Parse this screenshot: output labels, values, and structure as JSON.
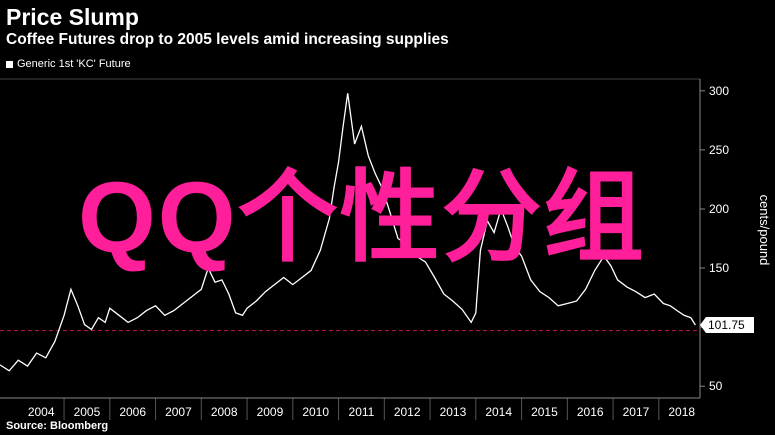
{
  "header": {
    "title": "Price Slump",
    "subtitle": "Coffee Futures drop to 2005 levels amid increasing supplies",
    "source": "Source: Bloomberg"
  },
  "watermark_text": "QQ个性分组",
  "colors": {
    "background": "#000000",
    "line": "#ffffff",
    "reference_line": "#c01848",
    "watermark": "#ff1f9a"
  },
  "chart_data": {
    "type": "line",
    "title": "Price Slump",
    "subtitle": "Coffee Futures drop to 2005 levels amid increasing supplies",
    "ylabel": "cents/pound",
    "ylim": [
      40,
      310
    ],
    "yticks": [
      50,
      100,
      150,
      200,
      250,
      300
    ],
    "ytick_labels": [
      "50",
      "100",
      "150",
      "200",
      "250",
      "300"
    ],
    "xlim": [
      2003.6,
      2018.9
    ],
    "xtick_labels": [
      "2004",
      "2005",
      "2006",
      "2007",
      "2008",
      "2009",
      "2010",
      "2011",
      "2012",
      "2013",
      "2014",
      "2015",
      "2016",
      "2017",
      "2018"
    ],
    "grid": false,
    "legend_position": "top-left",
    "last_value_label": "101.75",
    "reference_line_value": 97,
    "series": [
      {
        "name": "Generic 1st 'KC' Future",
        "x": [
          2003.6,
          2003.8,
          2004.0,
          2004.2,
          2004.4,
          2004.6,
          2004.8,
          2005.0,
          2005.15,
          2005.3,
          2005.45,
          2005.6,
          2005.75,
          2005.9,
          2006.0,
          2006.2,
          2006.4,
          2006.6,
          2006.8,
          2007.0,
          2007.2,
          2007.4,
          2007.6,
          2007.8,
          2008.0,
          2008.15,
          2008.3,
          2008.45,
          2008.6,
          2008.75,
          2008.9,
          2009.0,
          2009.2,
          2009.4,
          2009.6,
          2009.8,
          2010.0,
          2010.2,
          2010.4,
          2010.6,
          2010.8,
          2010.9,
          2011.0,
          2011.1,
          2011.2,
          2011.35,
          2011.5,
          2011.65,
          2011.8,
          2011.95,
          2012.1,
          2012.3,
          2012.5,
          2012.7,
          2012.9,
          2013.1,
          2013.3,
          2013.5,
          2013.7,
          2013.9,
          2014.0,
          2014.1,
          2014.25,
          2014.4,
          2014.55,
          2014.7,
          2014.85,
          2015.0,
          2015.2,
          2015.4,
          2015.6,
          2015.8,
          2016.0,
          2016.2,
          2016.4,
          2016.6,
          2016.8,
          2016.95,
          2017.1,
          2017.3,
          2017.5,
          2017.7,
          2017.9,
          2018.1,
          2018.25,
          2018.4,
          2018.55,
          2018.7,
          2018.8
        ],
        "y": [
          68,
          63,
          72,
          67,
          78,
          74,
          88,
          110,
          132,
          118,
          102,
          98,
          108,
          104,
          116,
          110,
          104,
          108,
          114,
          118,
          110,
          114,
          120,
          126,
          132,
          150,
          138,
          140,
          128,
          112,
          110,
          116,
          122,
          130,
          136,
          142,
          136,
          142,
          148,
          165,
          192,
          218,
          240,
          270,
          298,
          255,
          270,
          245,
          230,
          218,
          200,
          175,
          170,
          160,
          155,
          142,
          128,
          122,
          115,
          104,
          112,
          165,
          190,
          180,
          200,
          185,
          168,
          160,
          140,
          130,
          125,
          118,
          120,
          122,
          132,
          148,
          160,
          152,
          140,
          134,
          130,
          125,
          128,
          120,
          118,
          114,
          110,
          108,
          101.75
        ]
      }
    ]
  }
}
